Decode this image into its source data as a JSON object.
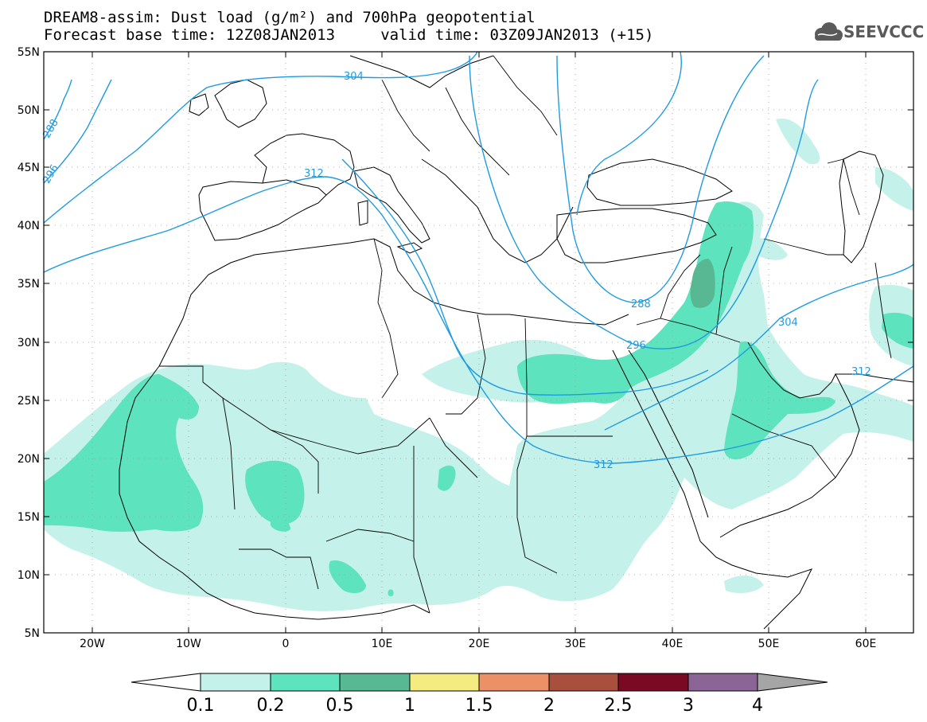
{
  "title": {
    "line1": "DREAM8-assim: Dust load (g/m²) and 700hPa geopotential",
    "line2": "Forecast base time: 12Z08JAN2013     valid time: 03Z09JAN2013 (+15)"
  },
  "logo": {
    "text": "SEEVCCC"
  },
  "axes": {
    "lat_labels": [
      "55N",
      "50N",
      "45N",
      "40N",
      "35N",
      "30N",
      "25N",
      "20N",
      "15N",
      "10N",
      "5N"
    ],
    "lon_labels": [
      "20W",
      "10W",
      "0",
      "10E",
      "20E",
      "30E",
      "40E",
      "50E",
      "60E"
    ]
  },
  "contour_labels": [
    "304",
    "312",
    "288",
    "296",
    "296",
    "288",
    "304",
    "312",
    "312"
  ],
  "colorbar": {
    "levels": [
      "0.1",
      "0.2",
      "0.5",
      "1",
      "1.5",
      "2",
      "2.5",
      "3",
      "4"
    ],
    "colors": [
      "#c4f1ea",
      "#5de3bd",
      "#57b893",
      "#f4ec80",
      "#ec9068",
      "#a84f3e",
      "#7a0a24",
      "#8b6596",
      "#a5a5a5"
    ]
  },
  "colors": {
    "dust_light": "#c4f1ea",
    "dust_mid": "#5de3bd",
    "dust_dark": "#57b893",
    "contour": "#1f9be0"
  }
}
